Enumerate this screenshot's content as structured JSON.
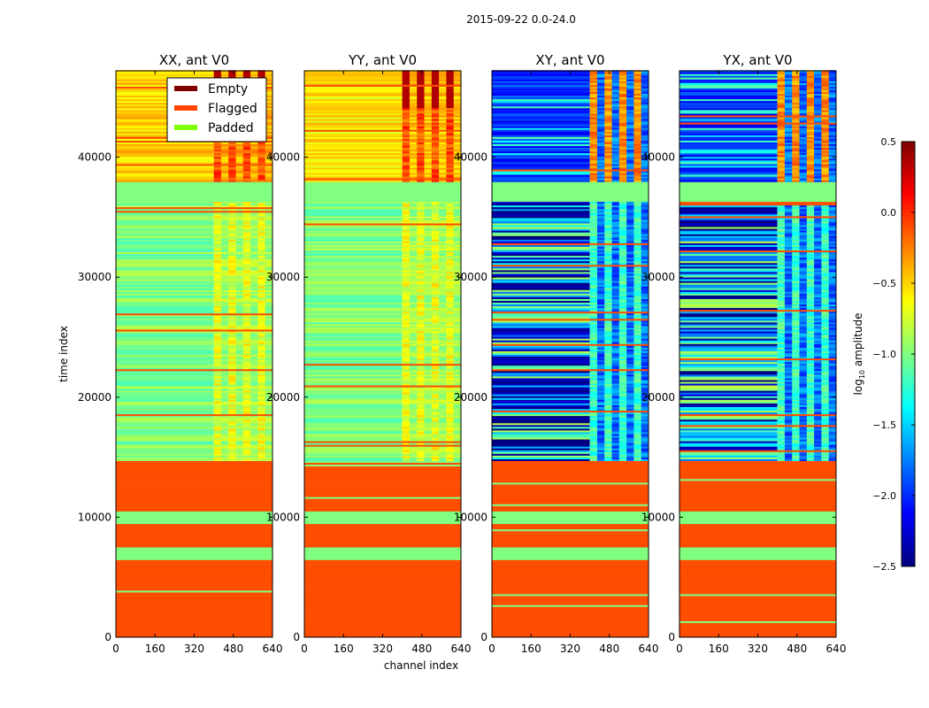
{
  "chart_data": {
    "type": "heatmap",
    "suptitle": "2015-09-22 0.0-24.0",
    "xlabel": "channel index",
    "ylabel": "time index",
    "xlim": [
      0,
      640
    ],
    "ylim": [
      0,
      47200
    ],
    "xticks": [
      "0",
      "160",
      "320",
      "480",
      "640"
    ],
    "yticks": [
      "0",
      "10000",
      "20000",
      "30000",
      "40000"
    ],
    "panels": [
      {
        "title": "XX, ant V0",
        "kind": "auto",
        "base_high": -0.5,
        "base_mid": -1.0,
        "rfi_high": -0.1,
        "rfi_mid": -0.7
      },
      {
        "title": "YY, ant V0",
        "kind": "auto",
        "base_high": -0.55,
        "base_mid": -1.0,
        "rfi_high": -0.1,
        "rfi_mid": -0.7
      },
      {
        "title": "XY, ant V0",
        "kind": "cross",
        "base_high": -2.0,
        "base_mid": -1.6,
        "rfi_high": -0.3,
        "rfi_mid": -1.2
      },
      {
        "title": "YX, ant V0",
        "kind": "cross",
        "base_high": -2.0,
        "base_mid": -1.6,
        "rfi_high": -0.3,
        "rfi_mid": -1.2
      }
    ],
    "time_segments": [
      {
        "from": 0,
        "to": 6400,
        "state": "flagged"
      },
      {
        "from": 6400,
        "to": 7500,
        "state": "padded"
      },
      {
        "from": 7500,
        "to": 9400,
        "state": "flagged"
      },
      {
        "from": 9400,
        "to": 10400,
        "state": "padded"
      },
      {
        "from": 10400,
        "to": 14700,
        "state": "flagged"
      },
      {
        "from": 14700,
        "to": 36200,
        "state": "data"
      },
      {
        "from": 36200,
        "to": 37900,
        "state": "padded"
      },
      {
        "from": 37900,
        "to": 47200,
        "state": "data"
      }
    ],
    "rfi_channels": [
      400,
      640
    ],
    "legend": {
      "position": "top-right of first panel",
      "entries": [
        {
          "label": "Empty",
          "color": "#800000"
        },
        {
          "label": "Flagged",
          "color": "#ff4500"
        },
        {
          "label": "Padded",
          "color": "#7fff00"
        }
      ]
    },
    "colorbar": {
      "label_prefix": "log",
      "label_sub": "10",
      "label_suffix": " amplitude",
      "range": [
        -2.5,
        0.5
      ],
      "ticks": [
        "0.5",
        "0.0",
        "−0.5",
        "−1.0",
        "−1.5",
        "−2.0",
        "−2.5"
      ]
    },
    "colors": {
      "flagged": "#ff4d00",
      "padded": "#80ff80"
    }
  }
}
